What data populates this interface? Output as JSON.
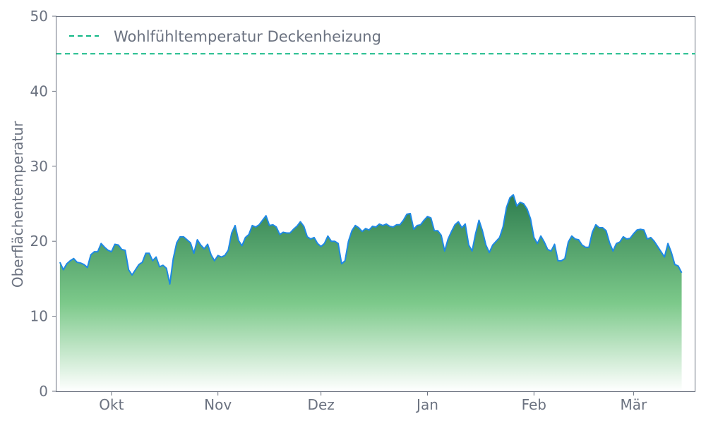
{
  "chart_data": {
    "type": "area",
    "ylabel": "Oberflächentemperatur",
    "ylim": [
      0,
      50
    ],
    "yticks": [
      0,
      10,
      20,
      30,
      40,
      50
    ],
    "xlim": [
      "2023-09-15",
      "2024-03-19"
    ],
    "xticks": [
      {
        "date": "2023-10-01",
        "label": "Okt"
      },
      {
        "date": "2023-11-01",
        "label": "Nov"
      },
      {
        "date": "2023-12-01",
        "label": "Dez"
      },
      {
        "date": "2024-01-01",
        "label": "Jan"
      },
      {
        "date": "2024-02-01",
        "label": "Feb"
      },
      {
        "date": "2024-03-01",
        "label": "Mär"
      }
    ],
    "start_date": "2023-09-16",
    "series": [
      {
        "values": [
          17.2,
          16.2,
          17.0,
          17.4,
          17.7,
          17.2,
          17.1,
          16.9,
          16.5,
          18.2,
          18.6,
          18.6,
          19.7,
          19.2,
          18.8,
          18.6,
          19.6,
          19.5,
          18.9,
          18.8,
          16.2,
          15.5,
          16.2,
          16.9,
          17.2,
          18.4,
          18.4,
          17.4,
          17.9,
          16.6,
          16.8,
          16.4,
          14.3,
          17.7,
          19.8,
          20.6,
          20.6,
          20.2,
          19.8,
          18.4,
          20.2,
          19.5,
          19.0,
          19.6,
          18.2,
          17.4,
          18.1,
          17.9,
          18.1,
          18.8,
          21.1,
          22.1,
          20.1,
          19.4,
          20.5,
          20.9,
          22.1,
          21.9,
          22.2,
          22.8,
          23.4,
          22.1,
          22.2,
          21.9,
          20.9,
          21.2,
          21.1,
          21.1,
          21.6,
          22.0,
          22.6,
          22.0,
          20.6,
          20.3,
          20.5,
          19.7,
          19.3,
          19.7,
          20.7,
          20.0,
          20.0,
          19.7,
          17.0,
          17.4,
          20.0,
          21.4,
          22.1,
          21.8,
          21.3,
          21.7,
          21.5,
          22.0,
          21.9,
          22.3,
          22.1,
          22.3,
          22.0,
          21.9,
          22.2,
          22.2,
          22.8,
          23.6,
          23.7,
          21.6,
          22.1,
          22.2,
          22.8,
          23.3,
          23.1,
          21.4,
          21.4,
          20.8,
          18.7,
          20.3,
          21.3,
          22.2,
          22.6,
          21.8,
          22.3,
          19.5,
          18.7,
          21.0,
          22.8,
          21.4,
          19.5,
          18.5,
          19.5,
          20.0,
          20.5,
          21.9,
          24.5,
          25.8,
          26.2,
          24.7,
          25.2,
          25.0,
          24.3,
          23.0,
          20.5,
          19.7,
          20.7,
          19.9,
          18.9,
          18.7,
          19.6,
          17.4,
          17.4,
          17.7,
          19.9,
          20.7,
          20.3,
          20.2,
          19.5,
          19.2,
          19.2,
          21.2,
          22.2,
          21.8,
          21.8,
          21.4,
          19.8,
          18.7,
          19.7,
          19.9,
          20.6,
          20.3,
          20.4,
          21.0,
          21.5,
          21.6,
          21.5,
          20.3,
          20.5,
          20.0,
          19.3,
          18.6,
          17.9,
          19.7,
          18.5,
          16.9,
          16.7,
          15.8
        ]
      }
    ],
    "reference_line": {
      "value": 45,
      "label": "Wohlfühltemperatur Deckenheizung"
    },
    "legend_position": "top-left",
    "colors": {
      "line": "#1e88e5",
      "fill_top": "#2e7d4f",
      "fill_mid": "#7cc98a",
      "fill_bottom": "#ffffff",
      "reference": "#12b886",
      "axis": "#6b7280",
      "text": "#6b7280"
    },
    "grid": false
  }
}
